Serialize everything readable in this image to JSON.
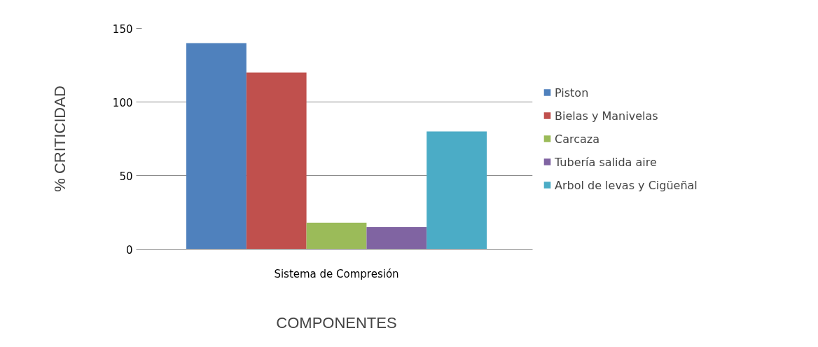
{
  "chart_data": {
    "type": "bar",
    "xlabel": "COMPONENTES",
    "ylabel": "% CRITICIDAD",
    "categories": [
      "Sistema de Compresión"
    ],
    "series": [
      {
        "name": "Piston",
        "color": "#4f81bd",
        "values": [
          140
        ]
      },
      {
        "name": "Bielas y Manivelas",
        "color": "#c0504d",
        "values": [
          120
        ]
      },
      {
        "name": "Carcaza",
        "color": "#9bbb59",
        "values": [
          18
        ]
      },
      {
        "name": "Tubería salida aire",
        "color": "#8064a2",
        "values": [
          15
        ]
      },
      {
        "name": "Arbol de levas y Cigüeñal",
        "color": "#4bacc6",
        "values": [
          80
        ]
      }
    ],
    "ylim": [
      0,
      150
    ],
    "yticks": [
      0,
      50,
      100,
      150
    ],
    "grid": "y",
    "legend": "right"
  }
}
